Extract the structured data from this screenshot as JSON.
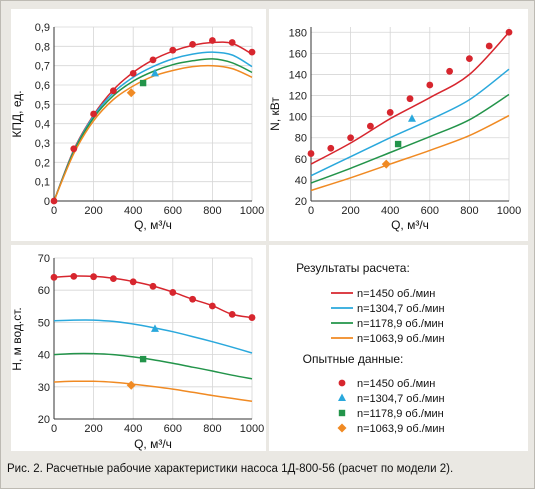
{
  "caption": "Рис. 2. Расчетные рабочие характеристики насоса 1Д-800-56 (расчет по модели 2).",
  "colors": {
    "n1450": "#d7262e",
    "n1304": "#2aa8dc",
    "n1178": "#23944a",
    "n1063": "#f08a23"
  },
  "legend": {
    "calc_title": "Результаты расчета:",
    "exp_title": "Опытные данные:",
    "calc_items": [
      "n=1450 об./мин",
      "n=1304,7 об./мин",
      "n=1178,9 об./мин",
      "n=1063,9 об./мин"
    ],
    "exp_items": [
      "n=1450 об./мин",
      "n=1304,7 об./мин",
      "n=1178,9 об./мин",
      "n=1063,9 об./мин"
    ],
    "exp_markers": [
      "circle-marker",
      "triangle-marker",
      "square-marker",
      "diamond-marker"
    ]
  },
  "chart_data": [
    {
      "id": "eff",
      "type": "line",
      "xlabel": "Q, м³/ч",
      "ylabel": "КПД, ед.",
      "xlim": [
        0,
        1000
      ],
      "ylim": [
        0,
        0.9
      ],
      "xticks": [
        0,
        200,
        400,
        600,
        800,
        1000
      ],
      "yticks": [
        0,
        0.1,
        0.2,
        0.3,
        0.4,
        0.5,
        0.6,
        0.7,
        0.8,
        0.9
      ],
      "ytick_labels": [
        "0",
        "0,1",
        "0,2",
        "0,3",
        "0,4",
        "0,5",
        "0,6",
        "0,7",
        "0,8",
        "0,9"
      ],
      "grid": true,
      "series": [
        {
          "name": "n=1450 об./мин",
          "color_key": "n1450",
          "x": [
            0,
            100,
            200,
            300,
            400,
            500,
            600,
            700,
            800,
            900,
            1000
          ],
          "y": [
            0,
            0.265,
            0.445,
            0.575,
            0.665,
            0.73,
            0.775,
            0.805,
            0.82,
            0.815,
            0.76
          ]
        },
        {
          "name": "n=1304,7 об./мин",
          "color_key": "n1304",
          "x": [
            0,
            100,
            200,
            300,
            400,
            500,
            600,
            700,
            800,
            900,
            1000
          ],
          "y": [
            0,
            0.26,
            0.44,
            0.56,
            0.64,
            0.695,
            0.735,
            0.76,
            0.77,
            0.755,
            0.695
          ]
        },
        {
          "name": "n=1178,9 об./мин",
          "color_key": "n1178",
          "x": [
            0,
            100,
            200,
            300,
            400,
            500,
            600,
            700,
            800,
            900,
            1000
          ],
          "y": [
            0,
            0.255,
            0.43,
            0.545,
            0.62,
            0.67,
            0.705,
            0.725,
            0.735,
            0.715,
            0.665
          ]
        },
        {
          "name": "n=1063,9 об./мин",
          "color_key": "n1063",
          "x": [
            0,
            100,
            200,
            300,
            400,
            500,
            600,
            700,
            800,
            900,
            1000
          ],
          "y": [
            0,
            0.245,
            0.415,
            0.525,
            0.595,
            0.645,
            0.675,
            0.695,
            0.7,
            0.685,
            0.64
          ]
        }
      ],
      "points": [
        {
          "name": "n=1450 об./мин",
          "color_key": "n1450",
          "marker": "circle",
          "x": [
            0,
            100,
            200,
            300,
            400,
            500,
            600,
            700,
            800,
            900,
            1000
          ],
          "y": [
            0,
            0.27,
            0.45,
            0.57,
            0.66,
            0.73,
            0.78,
            0.81,
            0.83,
            0.82,
            0.77
          ]
        },
        {
          "name": "n=1304,7 об./мин",
          "color_key": "n1304",
          "marker": "triangle",
          "x": [
            510
          ],
          "y": [
            0.66
          ]
        },
        {
          "name": "n=1178,9 об./мин",
          "color_key": "n1178",
          "marker": "square",
          "x": [
            450
          ],
          "y": [
            0.61
          ]
        },
        {
          "name": "n=1063,9 об./мин",
          "color_key": "n1063",
          "marker": "diamond",
          "x": [
            390
          ],
          "y": [
            0.56
          ]
        }
      ]
    },
    {
      "id": "power",
      "type": "line",
      "xlabel": "Q, м³/ч",
      "ylabel": "N, кВт",
      "xlim": [
        0,
        1000
      ],
      "ylim": [
        20,
        185
      ],
      "xticks": [
        0,
        200,
        400,
        600,
        800,
        1000
      ],
      "yticks": [
        20,
        40,
        60,
        80,
        100,
        120,
        140,
        160,
        180
      ],
      "ytick_labels": [
        "20",
        "40",
        "60",
        "80",
        "100",
        "120",
        "140",
        "160",
        "180"
      ],
      "grid": true,
      "series": [
        {
          "name": "n=1450 об./мин",
          "color_key": "n1450",
          "x": [
            0,
            200,
            400,
            600,
            800,
            1000
          ],
          "y": [
            55,
            75,
            98,
            118,
            140,
            180
          ]
        },
        {
          "name": "n=1304,7 об./мин",
          "color_key": "n1304",
          "x": [
            0,
            200,
            400,
            600,
            800,
            1000
          ],
          "y": [
            44,
            62,
            80,
            97,
            116,
            145
          ]
        },
        {
          "name": "n=1178,9 об./мин",
          "color_key": "n1178",
          "x": [
            0,
            200,
            400,
            600,
            800,
            1000
          ],
          "y": [
            37,
            51,
            66,
            81,
            97,
            121
          ]
        },
        {
          "name": "n=1063,9 об./мин",
          "color_key": "n1063",
          "x": [
            0,
            200,
            400,
            600,
            800,
            1000
          ],
          "y": [
            30,
            42,
            55,
            68,
            82,
            101
          ]
        }
      ],
      "points": [
        {
          "name": "n=1450 об./мин",
          "color_key": "n1450",
          "marker": "circle",
          "x": [
            0,
            100,
            200,
            300,
            400,
            500,
            600,
            700,
            800,
            900,
            1000
          ],
          "y": [
            65,
            70,
            80,
            91,
            104,
            117,
            130,
            143,
            155,
            167,
            180
          ]
        },
        {
          "name": "n=1304,7 об./мин",
          "color_key": "n1304",
          "marker": "triangle",
          "x": [
            510
          ],
          "y": [
            98
          ]
        },
        {
          "name": "n=1178,9 об./мин",
          "color_key": "n1178",
          "marker": "square",
          "x": [
            440
          ],
          "y": [
            74
          ]
        },
        {
          "name": "n=1063,9 об./мин",
          "color_key": "n1063",
          "marker": "diamond",
          "x": [
            380
          ],
          "y": [
            55
          ]
        }
      ]
    },
    {
      "id": "head",
      "type": "line",
      "xlabel": "Q, м³/ч",
      "ylabel": "H, м вод.ст.",
      "xlim": [
        0,
        1000
      ],
      "ylim": [
        20,
        70
      ],
      "xticks": [
        0,
        200,
        400,
        600,
        800,
        1000
      ],
      "yticks": [
        20,
        30,
        40,
        50,
        60,
        70
      ],
      "ytick_labels": [
        "20",
        "30",
        "40",
        "50",
        "60",
        "70"
      ],
      "grid": true,
      "series": [
        {
          "name": "n=1450 об./мин",
          "color_key": "n1450",
          "x": [
            0,
            100,
            200,
            300,
            400,
            500,
            600,
            700,
            800,
            900,
            1000
          ],
          "y": [
            64,
            64.4,
            64.3,
            63.7,
            62.7,
            61.3,
            59.4,
            57.2,
            55.2,
            52.5,
            51.5
          ]
        },
        {
          "name": "n=1304,7 об./мин",
          "color_key": "n1304",
          "x": [
            0,
            100,
            200,
            300,
            400,
            500,
            600,
            700,
            800,
            900,
            1000
          ],
          "y": [
            50.5,
            50.7,
            50.7,
            50.3,
            49.5,
            48.4,
            47.1,
            45.6,
            44,
            42.3,
            40.5
          ]
        },
        {
          "name": "n=1178,9 об./мин",
          "color_key": "n1178",
          "x": [
            0,
            100,
            200,
            300,
            400,
            500,
            600,
            700,
            800,
            900,
            1000
          ],
          "y": [
            40,
            40.3,
            40.3,
            40,
            39.3,
            38.4,
            37.3,
            36.1,
            34.9,
            33.6,
            32.5
          ]
        },
        {
          "name": "n=1063,9 об./мин",
          "color_key": "n1063",
          "x": [
            0,
            100,
            200,
            300,
            400,
            500,
            600,
            700,
            800,
            900,
            1000
          ],
          "y": [
            31.5,
            31.7,
            31.7,
            31.4,
            30.8,
            30.1,
            29.3,
            28.3,
            27.3,
            26.4,
            25.5
          ]
        }
      ],
      "points": [
        {
          "name": "n=1450 об./мин",
          "color_key": "n1450",
          "marker": "circle",
          "x": [
            0,
            100,
            200,
            300,
            400,
            500,
            600,
            700,
            800,
            900,
            1000
          ],
          "y": [
            64,
            64.3,
            64.2,
            63.6,
            62.6,
            61.2,
            59.3,
            57.2,
            55.1,
            52.5,
            51.5
          ]
        },
        {
          "name": "n=1304,7 об./мин",
          "color_key": "n1304",
          "marker": "triangle",
          "x": [
            510
          ],
          "y": [
            48
          ]
        },
        {
          "name": "n=1178,9 об./мин",
          "color_key": "n1178",
          "marker": "square",
          "x": [
            450
          ],
          "y": [
            38.6
          ]
        },
        {
          "name": "n=1063,9 об./мин",
          "color_key": "n1063",
          "marker": "diamond",
          "x": [
            390
          ],
          "y": [
            30.5
          ]
        }
      ]
    }
  ]
}
